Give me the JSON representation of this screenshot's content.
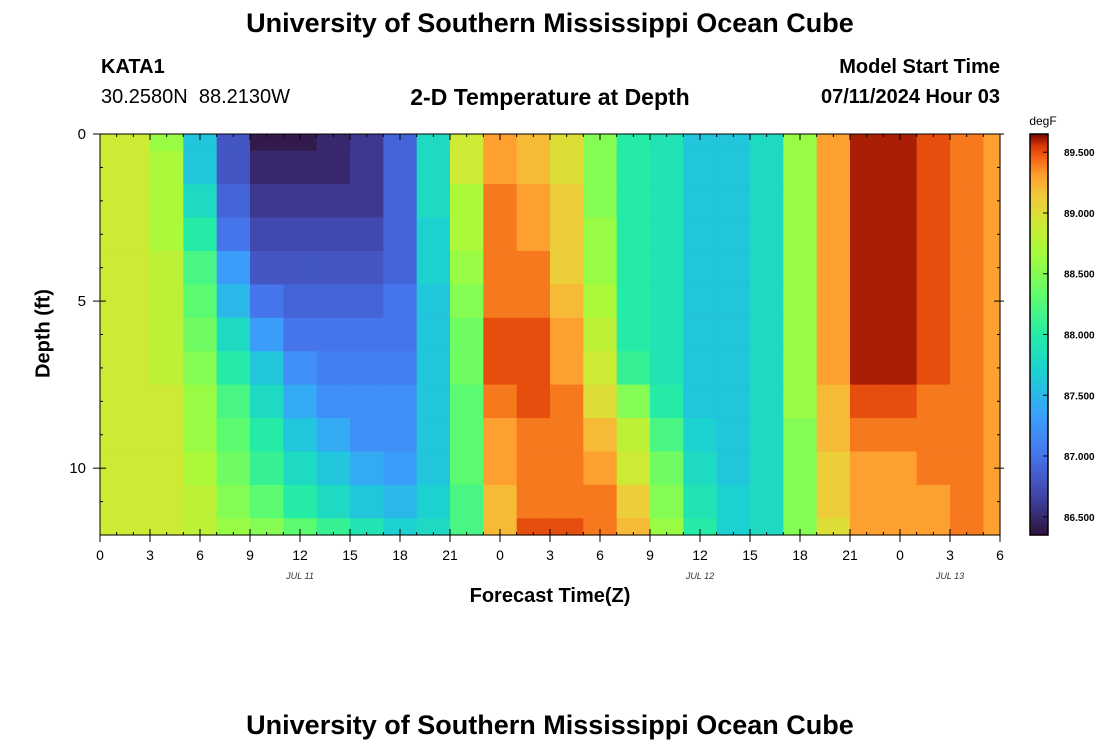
{
  "title": "University of Southern Mississippi Ocean Cube",
  "station": {
    "id": "KATA1",
    "lat": "30.2580N",
    "lon": "88.2130W"
  },
  "subtitle": "2-D Temperature at Depth",
  "model_start": {
    "label": "Model Start Time",
    "value": "07/11/2024 Hour 03"
  },
  "bottom_title": "University of Southern Mississippi Ocean Cube",
  "colors": {
    "background": "#ffffff",
    "axis": "#000000"
  },
  "chart_data": {
    "type": "heatmap",
    "xlabel": "Forecast Time(Z)",
    "ylabel": "Depth (ft)",
    "colorbar_unit": "degF",
    "colormap": "turbo",
    "zlim": [
      86.35,
      89.65
    ],
    "colorbar_ticks": [
      "86.500",
      "87.000",
      "87.500",
      "88.000",
      "88.500",
      "89.000",
      "89.500"
    ],
    "x_tick_labels": [
      "0",
      "3",
      "6",
      "9",
      "12",
      "15",
      "18",
      "21",
      "0",
      "3",
      "6",
      "9",
      "12",
      "15",
      "18",
      "21",
      "0",
      "3",
      "6"
    ],
    "date_labels": [
      "JUL 11",
      "JUL 12",
      "JUL 13"
    ],
    "x_range_hours": [
      0,
      54
    ],
    "y_tick_labels": [
      "0",
      "5",
      "10"
    ],
    "ylim": [
      12,
      0
    ],
    "depths_ft": [
      0,
      1,
      2,
      3,
      4,
      5,
      6,
      7,
      8,
      9,
      10,
      11,
      12
    ],
    "time_hours": [
      0,
      2,
      4,
      6,
      8,
      10,
      12,
      14,
      16,
      18,
      20,
      22,
      24,
      26,
      28,
      30,
      32,
      34,
      36,
      38,
      40,
      42,
      44,
      46,
      48,
      50,
      52,
      54
    ],
    "values": [
      [
        88.9,
        88.9,
        88.6,
        87.6,
        86.8,
        86.4,
        86.4,
        86.5,
        86.6,
        86.9,
        87.8,
        88.9,
        89.3,
        89.2,
        89.0,
        88.5,
        88.0,
        87.9,
        87.6,
        87.6,
        87.8,
        88.6,
        89.3,
        89.6,
        89.6,
        89.5,
        89.4,
        89.3
      ],
      [
        88.9,
        88.9,
        88.7,
        87.6,
        86.8,
        86.5,
        86.5,
        86.5,
        86.6,
        86.9,
        87.8,
        88.9,
        89.3,
        89.2,
        89.0,
        88.5,
        88.0,
        87.9,
        87.6,
        87.6,
        87.8,
        88.6,
        89.3,
        89.6,
        89.6,
        89.5,
        89.4,
        89.3
      ],
      [
        88.9,
        88.9,
        88.7,
        87.8,
        86.9,
        86.6,
        86.6,
        86.6,
        86.6,
        86.9,
        87.8,
        88.7,
        89.4,
        89.3,
        89.1,
        88.5,
        88.0,
        87.9,
        87.6,
        87.6,
        87.8,
        88.6,
        89.3,
        89.6,
        89.6,
        89.5,
        89.4,
        89.3
      ],
      [
        88.9,
        88.9,
        88.7,
        88.0,
        87.0,
        86.7,
        86.7,
        86.7,
        86.7,
        86.9,
        87.7,
        88.7,
        89.4,
        89.3,
        89.1,
        88.6,
        88.0,
        87.9,
        87.6,
        87.6,
        87.8,
        88.6,
        89.3,
        89.6,
        89.6,
        89.5,
        89.4,
        89.3
      ],
      [
        88.9,
        88.9,
        88.8,
        88.2,
        87.3,
        86.8,
        86.8,
        86.8,
        86.8,
        86.9,
        87.7,
        88.6,
        89.4,
        89.4,
        89.1,
        88.6,
        88.0,
        87.9,
        87.6,
        87.6,
        87.8,
        88.6,
        89.3,
        89.6,
        89.6,
        89.5,
        89.4,
        89.3
      ],
      [
        88.9,
        88.9,
        88.8,
        88.3,
        87.5,
        87.0,
        86.9,
        86.9,
        86.9,
        87.0,
        87.6,
        88.5,
        89.4,
        89.4,
        89.2,
        88.7,
        88.0,
        87.9,
        87.6,
        87.6,
        87.8,
        88.6,
        89.3,
        89.6,
        89.6,
        89.5,
        89.4,
        89.3
      ],
      [
        88.9,
        88.9,
        88.8,
        88.4,
        87.8,
        87.3,
        87.0,
        87.0,
        87.0,
        87.0,
        87.6,
        88.4,
        89.5,
        89.5,
        89.3,
        88.8,
        88.0,
        87.9,
        87.6,
        87.6,
        87.8,
        88.6,
        89.3,
        89.6,
        89.6,
        89.5,
        89.4,
        89.3
      ],
      [
        88.9,
        88.9,
        88.8,
        88.5,
        88.0,
        87.6,
        87.2,
        87.1,
        87.1,
        87.1,
        87.6,
        88.4,
        89.5,
        89.5,
        89.3,
        88.9,
        88.1,
        87.9,
        87.6,
        87.6,
        87.8,
        88.6,
        89.3,
        89.6,
        89.6,
        89.5,
        89.4,
        89.3
      ],
      [
        88.9,
        88.9,
        88.9,
        88.6,
        88.2,
        87.8,
        87.4,
        87.2,
        87.2,
        87.2,
        87.6,
        88.3,
        89.4,
        89.5,
        89.4,
        89.0,
        88.5,
        88.0,
        87.6,
        87.6,
        87.8,
        88.6,
        89.2,
        89.5,
        89.5,
        89.4,
        89.4,
        89.3
      ],
      [
        88.9,
        88.9,
        88.9,
        88.6,
        88.3,
        88.0,
        87.6,
        87.4,
        87.2,
        87.2,
        87.6,
        88.3,
        89.3,
        89.4,
        89.4,
        89.2,
        88.8,
        88.2,
        87.7,
        87.6,
        87.8,
        88.5,
        89.2,
        89.4,
        89.4,
        89.4,
        89.4,
        89.3
      ],
      [
        88.9,
        88.9,
        88.9,
        88.7,
        88.4,
        88.1,
        87.8,
        87.6,
        87.4,
        87.3,
        87.6,
        88.3,
        89.3,
        89.4,
        89.4,
        89.3,
        88.9,
        88.4,
        87.8,
        87.6,
        87.8,
        88.5,
        89.1,
        89.3,
        89.3,
        89.4,
        89.4,
        89.3
      ],
      [
        88.9,
        88.9,
        88.9,
        88.8,
        88.5,
        88.3,
        88.0,
        87.8,
        87.6,
        87.5,
        87.7,
        88.2,
        89.2,
        89.4,
        89.4,
        89.4,
        89.1,
        88.5,
        87.9,
        87.7,
        87.8,
        88.5,
        89.1,
        89.3,
        89.3,
        89.3,
        89.4,
        89.3
      ],
      [
        88.9,
        88.9,
        88.9,
        88.8,
        88.6,
        88.5,
        88.3,
        88.1,
        87.9,
        87.7,
        87.8,
        88.2,
        89.2,
        89.5,
        89.5,
        89.4,
        89.2,
        88.6,
        88.0,
        87.7,
        87.8,
        88.5,
        89.0,
        89.3,
        89.3,
        89.3,
        89.4,
        89.3
      ]
    ]
  }
}
